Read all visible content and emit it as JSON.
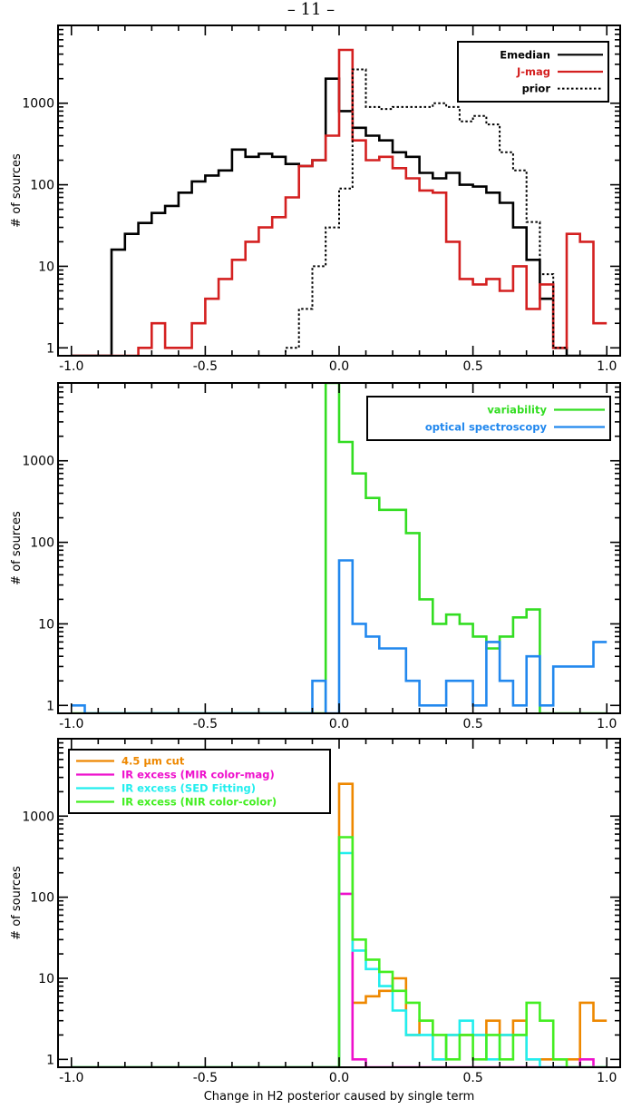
{
  "page_number": "– 11 –",
  "chart_data": [
    {
      "type": "histogram",
      "title": "",
      "xlabel": "",
      "ylabel": "# of sources",
      "xlim": [
        -1.05,
        1.05
      ],
      "ylim": [
        0.8,
        9000
      ],
      "yscale": "log",
      "x_ticks": [
        "-1.0",
        "-0.5",
        "0.0",
        "0.5",
        "1.0"
      ],
      "y_ticks": [
        "1",
        "10",
        "100",
        "1000"
      ],
      "legend_position": "top-right",
      "bin_edges": [
        -1.0,
        -0.95,
        -0.9,
        -0.85,
        -0.8,
        -0.75,
        -0.7,
        -0.65,
        -0.6,
        -0.55,
        -0.5,
        -0.45,
        -0.4,
        -0.35,
        -0.3,
        -0.25,
        -0.2,
        -0.15,
        -0.1,
        -0.05,
        0.0,
        0.05,
        0.1,
        0.15,
        0.2,
        0.25,
        0.3,
        0.35,
        0.4,
        0.45,
        0.5,
        0.55,
        0.6,
        0.65,
        0.7,
        0.75,
        0.8,
        0.85,
        0.9,
        0.95,
        1.0
      ],
      "series": [
        {
          "name": "Emedian",
          "color": "#000000",
          "dash": "solid",
          "values": [
            0.8,
            0.8,
            0.8,
            16,
            25,
            34,
            45,
            55,
            80,
            110,
            130,
            150,
            270,
            220,
            240,
            220,
            180,
            170,
            200,
            2000,
            800,
            500,
            400,
            350,
            250,
            220,
            140,
            120,
            140,
            100,
            95,
            80,
            60,
            30,
            12,
            4,
            1,
            0.8,
            0.8,
            0.8
          ]
        },
        {
          "name": "J-mag",
          "color": "#d42020",
          "dash": "solid",
          "values": [
            0.8,
            0.8,
            0.8,
            0.8,
            0.8,
            1,
            2,
            1,
            1,
            2,
            4,
            7,
            12,
            20,
            30,
            40,
            70,
            170,
            200,
            400,
            4500,
            350,
            200,
            220,
            160,
            120,
            85,
            80,
            20,
            7,
            6,
            7,
            5,
            10,
            3,
            6,
            1,
            25,
            20,
            2
          ]
        },
        {
          "name": "prior",
          "color": "#000000",
          "dash": "dotted",
          "values": [
            0.8,
            0.8,
            0.8,
            0.8,
            0.8,
            0.8,
            0.8,
            0.8,
            0.8,
            0.8,
            0.8,
            0.8,
            0.8,
            0.8,
            0.8,
            0.8,
            1,
            3,
            10,
            30,
            90,
            2600,
            900,
            850,
            900,
            900,
            900,
            1000,
            900,
            600,
            700,
            550,
            250,
            150,
            35,
            8,
            1,
            0.8,
            0.8,
            0.8
          ]
        }
      ]
    },
    {
      "type": "histogram",
      "title": "",
      "xlabel": "",
      "ylabel": "# of sources",
      "xlim": [
        -1.05,
        1.05
      ],
      "ylim": [
        0.8,
        9000
      ],
      "yscale": "log",
      "x_ticks": [
        "-1.0",
        "-0.5",
        "0.0",
        "0.5",
        "1.0"
      ],
      "y_ticks": [
        "1",
        "10",
        "100",
        "1000"
      ],
      "legend_position": "top-right",
      "bin_edges": [
        -1.0,
        -0.95,
        -0.9,
        -0.85,
        -0.8,
        -0.75,
        -0.7,
        -0.65,
        -0.6,
        -0.55,
        -0.5,
        -0.45,
        -0.4,
        -0.35,
        -0.3,
        -0.25,
        -0.2,
        -0.15,
        -0.1,
        -0.05,
        0.0,
        0.05,
        0.1,
        0.15,
        0.2,
        0.25,
        0.3,
        0.35,
        0.4,
        0.45,
        0.5,
        0.55,
        0.6,
        0.65,
        0.7,
        0.75,
        0.8,
        0.85,
        0.9,
        0.95,
        1.0
      ],
      "series": [
        {
          "name": "variability",
          "color": "#33dd22",
          "dash": "solid",
          "values": [
            0.8,
            0.8,
            0.8,
            0.8,
            0.8,
            0.8,
            0.8,
            0.8,
            0.8,
            0.8,
            0.8,
            0.8,
            0.8,
            0.8,
            0.8,
            0.8,
            0.8,
            0.8,
            0.8,
            9000,
            1700,
            700,
            350,
            250,
            250,
            130,
            20,
            10,
            13,
            10,
            7,
            5,
            7,
            12,
            15,
            0.8,
            0.8,
            0.8,
            0.8,
            0.8
          ]
        },
        {
          "name": "optical spectroscopy",
          "color": "#2288ee",
          "dash": "solid",
          "values": [
            1,
            0.8,
            0.8,
            0.8,
            0.8,
            0.8,
            0.8,
            0.8,
            0.8,
            0.8,
            0.8,
            0.8,
            0.8,
            0.8,
            0.8,
            0.8,
            0.8,
            0.8,
            2,
            0.8,
            60,
            10,
            7,
            5,
            5,
            2,
            1,
            1,
            2,
            2,
            1,
            6,
            2,
            1,
            4,
            1,
            3,
            3,
            3,
            6
          ]
        }
      ]
    },
    {
      "type": "histogram",
      "title": "",
      "xlabel": "Change in H2 posterior caused by single term",
      "ylabel": "# of sources",
      "xlim": [
        -1.05,
        1.05
      ],
      "ylim": [
        0.8,
        9000
      ],
      "yscale": "log",
      "x_ticks": [
        "-1.0",
        "-0.5",
        "0.0",
        "0.5",
        "1.0"
      ],
      "y_ticks": [
        "1",
        "10",
        "100",
        "1000"
      ],
      "legend_position": "top-left",
      "bin_edges": [
        -1.0,
        -0.95,
        -0.9,
        -0.85,
        -0.8,
        -0.75,
        -0.7,
        -0.65,
        -0.6,
        -0.55,
        -0.5,
        -0.45,
        -0.4,
        -0.35,
        -0.3,
        -0.25,
        -0.2,
        -0.15,
        -0.1,
        -0.05,
        0.0,
        0.05,
        0.1,
        0.15,
        0.2,
        0.25,
        0.3,
        0.35,
        0.4,
        0.45,
        0.5,
        0.55,
        0.6,
        0.65,
        0.7,
        0.75,
        0.8,
        0.85,
        0.9,
        0.95,
        1.0
      ],
      "series": [
        {
          "name": "4.5 μm cut",
          "color": "#ee8800",
          "dash": "solid",
          "values": [
            0.8,
            0.8,
            0.8,
            0.8,
            0.8,
            0.8,
            0.8,
            0.8,
            0.8,
            0.8,
            0.8,
            0.8,
            0.8,
            0.8,
            0.8,
            0.8,
            0.8,
            0.8,
            0.8,
            0.8,
            2500,
            5,
            6,
            7,
            10,
            2,
            3,
            1,
            2,
            2,
            2,
            3,
            2,
            3,
            1,
            1,
            1,
            1,
            5,
            3
          ]
        },
        {
          "name": "IR excess (MIR color-mag)",
          "color": "#ee11cc",
          "dash": "solid",
          "values": [
            0.8,
            0.8,
            0.8,
            0.8,
            0.8,
            0.8,
            0.8,
            0.8,
            0.8,
            0.8,
            0.8,
            0.8,
            0.8,
            0.8,
            0.8,
            0.8,
            0.8,
            0.8,
            0.8,
            0.8,
            110,
            1,
            0.8,
            0.8,
            0.8,
            0.8,
            0.8,
            0.8,
            0.8,
            0.8,
            0.8,
            0.8,
            0.8,
            0.8,
            0.8,
            0.8,
            0.8,
            0.8,
            1,
            0.8
          ]
        },
        {
          "name": "IR excess (SED Fitting)",
          "color": "#22eeee",
          "dash": "solid",
          "values": [
            0.8,
            0.8,
            0.8,
            0.8,
            0.8,
            0.8,
            0.8,
            0.8,
            0.8,
            0.8,
            0.8,
            0.8,
            0.8,
            0.8,
            0.8,
            0.8,
            0.8,
            0.8,
            0.8,
            0.8,
            350,
            22,
            13,
            8,
            4,
            2,
            2,
            1,
            2,
            3,
            2,
            1,
            2,
            2,
            1,
            0.8,
            0.8,
            0.8,
            0.8,
            0.8
          ]
        },
        {
          "name": "IR excess (NIR color-color)",
          "color": "#44ee22",
          "dash": "solid",
          "values": [
            0.8,
            0.8,
            0.8,
            0.8,
            0.8,
            0.8,
            0.8,
            0.8,
            0.8,
            0.8,
            0.8,
            0.8,
            0.8,
            0.8,
            0.8,
            0.8,
            0.8,
            0.8,
            0.8,
            0.8,
            550,
            30,
            17,
            12,
            7,
            5,
            3,
            2,
            1,
            2,
            1,
            2,
            1,
            2,
            5,
            3,
            1,
            0.8,
            0.8,
            0.8
          ]
        }
      ]
    }
  ]
}
